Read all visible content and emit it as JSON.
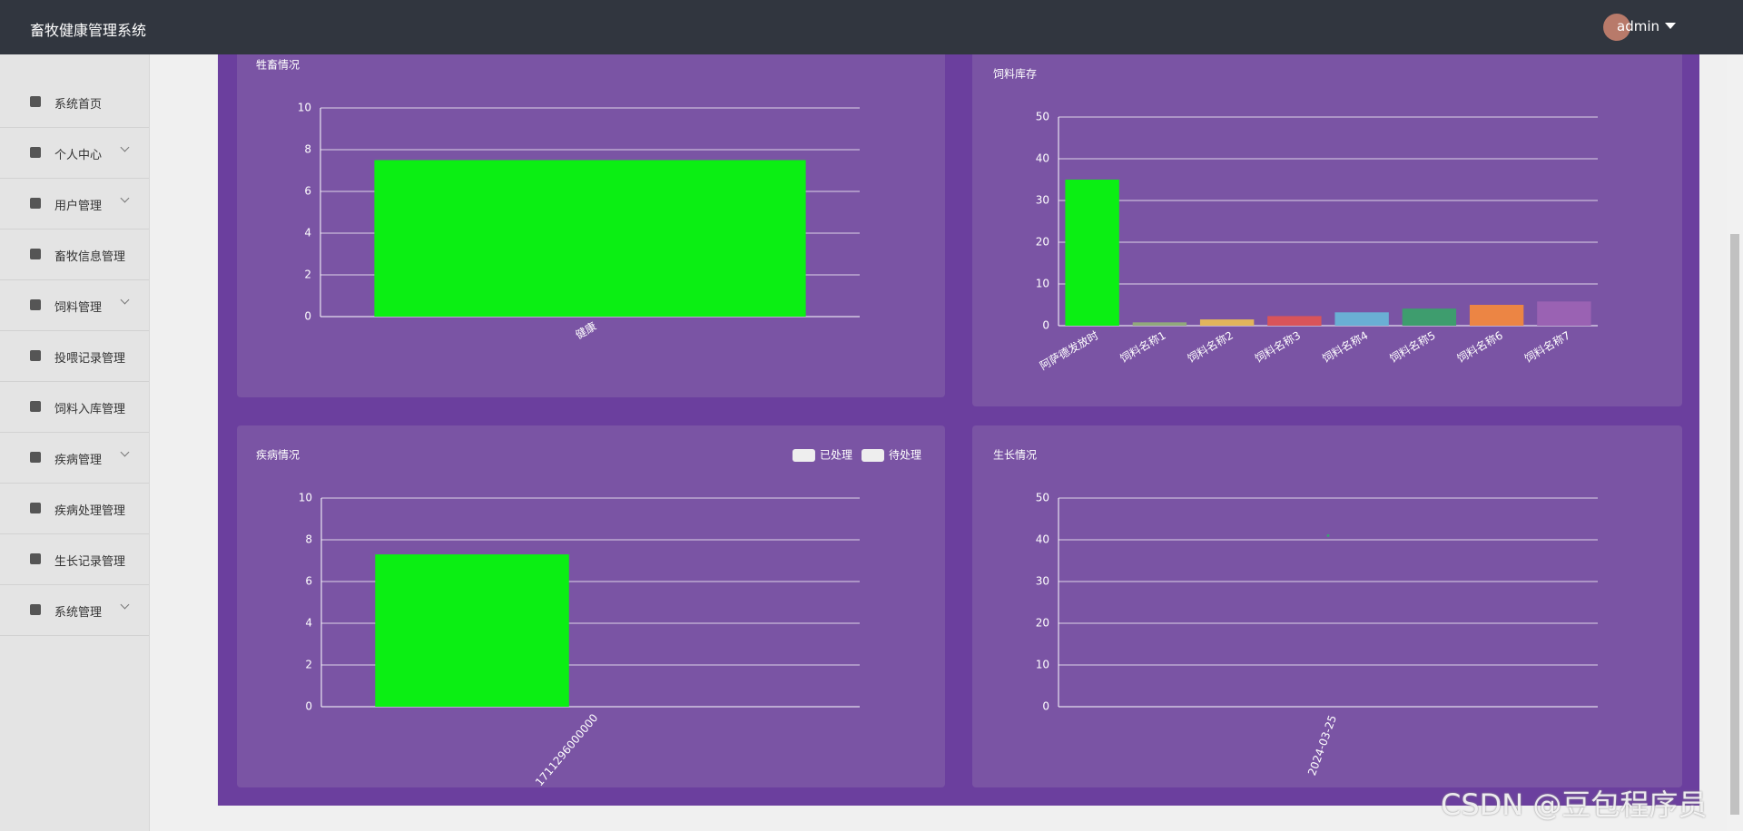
{
  "header": {
    "title": "畜牧健康管理系统",
    "user": "admin"
  },
  "sidebar": {
    "items": [
      {
        "label": "系统首页",
        "submenu": false
      },
      {
        "label": "个人中心",
        "submenu": true
      },
      {
        "label": "用户管理",
        "submenu": true
      },
      {
        "label": "畜牧信息管理",
        "submenu": false
      },
      {
        "label": "饲料管理",
        "submenu": true
      },
      {
        "label": "投喂记录管理",
        "submenu": false
      },
      {
        "label": "饲料入库管理",
        "submenu": false
      },
      {
        "label": "疾病管理",
        "submenu": true
      },
      {
        "label": "疾病处理管理",
        "submenu": false
      },
      {
        "label": "生长记录管理",
        "submenu": false
      },
      {
        "label": "系统管理",
        "submenu": true
      }
    ]
  },
  "chart_data": [
    {
      "type": "bar",
      "title": "牲畜情况",
      "categories": [
        "健康"
      ],
      "values": [
        7.5
      ],
      "color": "#0bef13",
      "ylim": [
        0,
        10
      ],
      "yticks": [
        0,
        2,
        4,
        6,
        8,
        10
      ],
      "grid": true,
      "label_rotation": -30
    },
    {
      "type": "bar",
      "title": "饲料库存",
      "categories": [
        "阿萨德发放时",
        "饲料名称1",
        "饲料名称2",
        "饲料名称3",
        "饲料名称4",
        "饲料名称5",
        "饲料名称6",
        "饲料名称7"
      ],
      "values": [
        35,
        0.8,
        1.5,
        2.3,
        3.2,
        4.1,
        5,
        5.8
      ],
      "colors": [
        "#0bef13",
        "#91a97c",
        "#e2b55c",
        "#d9545a",
        "#6aafd4",
        "#3e9d6e",
        "#ec8544",
        "#9a62b3"
      ],
      "ylim": [
        0,
        50
      ],
      "yticks": [
        0,
        10,
        20,
        30,
        40,
        50
      ],
      "grid": true,
      "label_rotation": -30
    },
    {
      "type": "bar",
      "title": "疾病情况",
      "categories": [
        "1711296000000"
      ],
      "series": [
        {
          "name": "已处理",
          "color": "#0bef13",
          "values": [
            7.3
          ]
        },
        {
          "name": "待处理",
          "values": [
            null
          ]
        }
      ],
      "ylim": [
        0,
        10
      ],
      "yticks": [
        0,
        2,
        4,
        6,
        8,
        10
      ],
      "grid": true,
      "legend": "top-right",
      "label_rotation": -50
    },
    {
      "type": "line",
      "title": "生长情况",
      "categories": [
        "2024-03-25"
      ],
      "values": [
        41
      ],
      "color": "#3ba272",
      "ylim": [
        0,
        50
      ],
      "yticks": [
        0,
        10,
        20,
        30,
        40,
        50
      ],
      "grid": true,
      "label_rotation": -70
    }
  ],
  "watermark": "CSDN @豆包程序员"
}
